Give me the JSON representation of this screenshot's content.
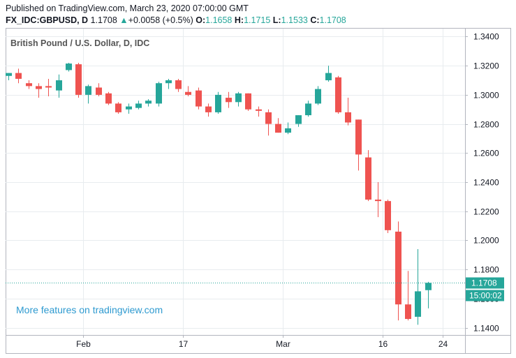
{
  "header": {
    "published": "Published on TradingView.com, March 23, 2020 07:00:00 GMT",
    "symbol": "FX_IDC:GBPUSD, D",
    "last": "1.1708",
    "change_arrow": "▲",
    "change": "+0.0058 (+0.5%)",
    "o_label": "O:",
    "o_value": "1.1658",
    "h_label": "H:",
    "h_value": "1.1715",
    "l_label": "L:",
    "l_value": "1.1533",
    "c_label": "C:",
    "c_value": "1.1708"
  },
  "legend": "British Pound / U.S. Dollar, D, IDC",
  "promo": "More features on tradingview.com",
  "price_tag": "1.1708",
  "countdown_tag": "15:00:02",
  "colors": {
    "up": "#26a69a",
    "down": "#ef5350",
    "grid": "#e8ecef",
    "axis": "#b2b5be",
    "promo": "#2e9ad0"
  },
  "chart_data": {
    "type": "candlestick",
    "y_ticks": [
      "1.1400",
      "1.1600",
      "1.1800",
      "1.2000",
      "1.2200",
      "1.2400",
      "1.2600",
      "1.2800",
      "1.3000",
      "1.3200",
      "1.3400"
    ],
    "ylim": [
      1.135,
      1.3455
    ],
    "x_ticks": [
      {
        "label": "Feb",
        "index": 7.5
      },
      {
        "label": "17",
        "index": 17.5
      },
      {
        "label": "Mar",
        "index": 27.5
      },
      {
        "label": "16",
        "index": 37.5
      },
      {
        "label": "24",
        "index": 43.5
      }
    ],
    "last_price": 1.1708,
    "candles": [
      {
        "o": 1.313,
        "h": 1.315,
        "l": 1.31,
        "c": 1.315
      },
      {
        "o": 1.315,
        "h": 1.318,
        "l": 1.308,
        "c": 1.311
      },
      {
        "o": 1.308,
        "h": 1.31,
        "l": 1.304,
        "c": 1.306
      },
      {
        "o": 1.306,
        "h": 1.308,
        "l": 1.298,
        "c": 1.304
      },
      {
        "o": 1.306,
        "h": 1.311,
        "l": 1.299,
        "c": 1.305
      },
      {
        "o": 1.303,
        "h": 1.314,
        "l": 1.298,
        "c": 1.31
      },
      {
        "o": 1.317,
        "h": 1.322,
        "l": 1.316,
        "c": 1.3215
      },
      {
        "o": 1.321,
        "h": 1.322,
        "l": 1.298,
        "c": 1.3
      },
      {
        "o": 1.3,
        "h": 1.307,
        "l": 1.294,
        "c": 1.306
      },
      {
        "o": 1.305,
        "h": 1.308,
        "l": 1.299,
        "c": 1.3
      },
      {
        "o": 1.301,
        "h": 1.302,
        "l": 1.293,
        "c": 1.294
      },
      {
        "o": 1.294,
        "h": 1.295,
        "l": 1.287,
        "c": 1.288
      },
      {
        "o": 1.29,
        "h": 1.294,
        "l": 1.287,
        "c": 1.292
      },
      {
        "o": 1.291,
        "h": 1.296,
        "l": 1.29,
        "c": 1.294
      },
      {
        "o": 1.294,
        "h": 1.297,
        "l": 1.292,
        "c": 1.296
      },
      {
        "o": 1.294,
        "h": 1.309,
        "l": 1.292,
        "c": 1.308
      },
      {
        "o": 1.308,
        "h": 1.311,
        "l": 1.304,
        "c": 1.31
      },
      {
        "o": 1.31,
        "h": 1.311,
        "l": 1.302,
        "c": 1.304
      },
      {
        "o": 1.302,
        "h": 1.306,
        "l": 1.299,
        "c": 1.3
      },
      {
        "o": 1.303,
        "h": 1.305,
        "l": 1.29,
        "c": 1.292
      },
      {
        "o": 1.292,
        "h": 1.294,
        "l": 1.285,
        "c": 1.288
      },
      {
        "o": 1.288,
        "h": 1.302,
        "l": 1.287,
        "c": 1.3
      },
      {
        "o": 1.298,
        "h": 1.302,
        "l": 1.291,
        "c": 1.295
      },
      {
        "o": 1.295,
        "h": 1.302,
        "l": 1.292,
        "c": 1.301
      },
      {
        "o": 1.301,
        "h": 1.301,
        "l": 1.289,
        "c": 1.29
      },
      {
        "o": 1.29,
        "h": 1.292,
        "l": 1.285,
        "c": 1.289
      },
      {
        "o": 1.288,
        "h": 1.29,
        "l": 1.272,
        "c": 1.28
      },
      {
        "o": 1.28,
        "h": 1.284,
        "l": 1.274,
        "c": 1.274
      },
      {
        "o": 1.274,
        "h": 1.281,
        "l": 1.273,
        "c": 1.277
      },
      {
        "o": 1.28,
        "h": 1.286,
        "l": 1.278,
        "c": 1.286
      },
      {
        "o": 1.286,
        "h": 1.296,
        "l": 1.285,
        "c": 1.294
      },
      {
        "o": 1.294,
        "h": 1.306,
        "l": 1.293,
        "c": 1.304
      },
      {
        "o": 1.31,
        "h": 1.32,
        "l": 1.309,
        "c": 1.315
      },
      {
        "o": 1.312,
        "h": 1.313,
        "l": 1.287,
        "c": 1.288
      },
      {
        "o": 1.288,
        "h": 1.298,
        "l": 1.279,
        "c": 1.281
      },
      {
        "o": 1.283,
        "h": 1.283,
        "l": 1.248,
        "c": 1.259
      },
      {
        "o": 1.257,
        "h": 1.262,
        "l": 1.227,
        "c": 1.228
      },
      {
        "o": 1.228,
        "h": 1.24,
        "l": 1.216,
        "c": 1.227
      },
      {
        "o": 1.227,
        "h": 1.228,
        "l": 1.205,
        "c": 1.207
      },
      {
        "o": 1.206,
        "h": 1.213,
        "l": 1.145,
        "c": 1.156
      },
      {
        "o": 1.156,
        "h": 1.179,
        "l": 1.145,
        "c": 1.146
      },
      {
        "o": 1.1475,
        "h": 1.194,
        "l": 1.142,
        "c": 1.165
      },
      {
        "o": 1.1658,
        "h": 1.1715,
        "l": 1.1533,
        "c": 1.1708
      }
    ]
  }
}
